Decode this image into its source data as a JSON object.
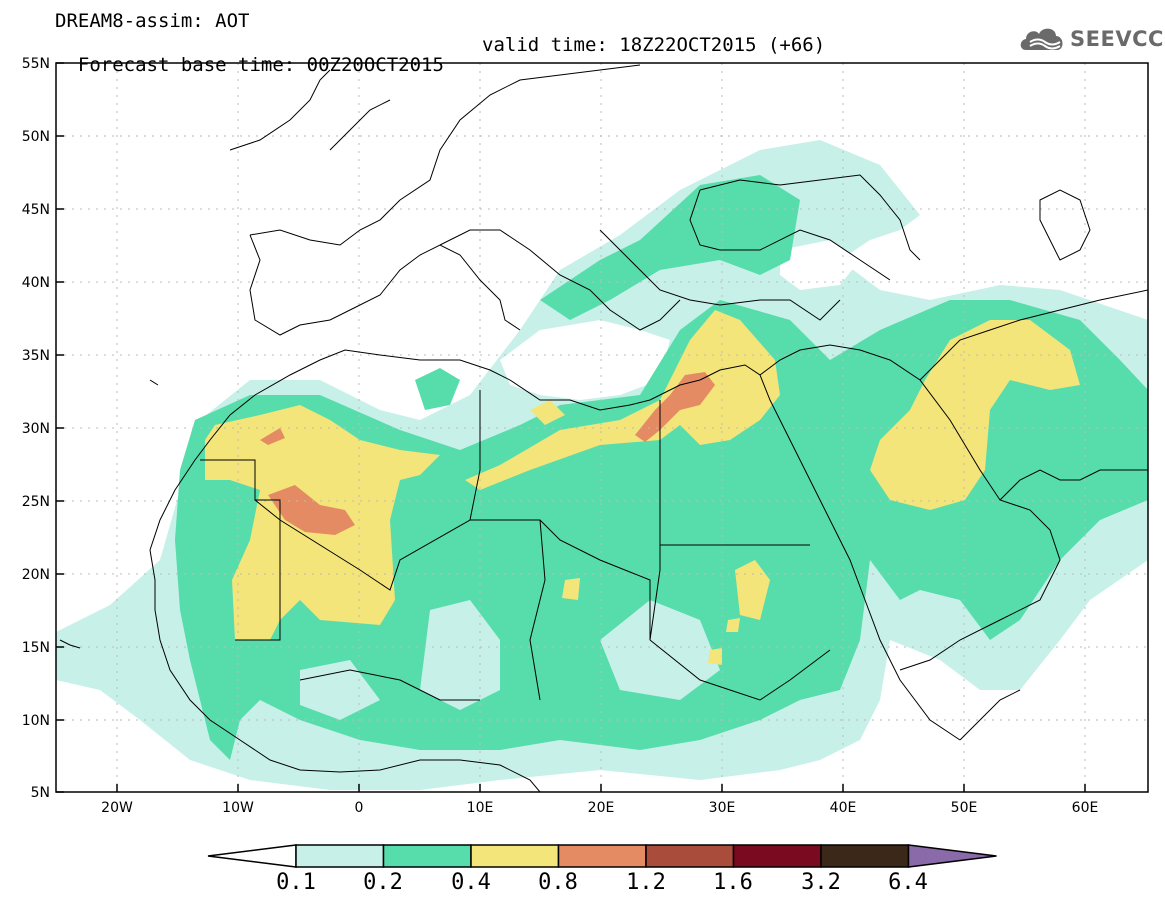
{
  "header": {
    "line1": "DREAM8-assim: AOT",
    "base": "Forecast base time: 00Z20OCT2015",
    "valid": "valid time: 18Z22OCT2015 (+66)"
  },
  "logo": {
    "text": "SEEVCCC",
    "icon": "cloud-icon"
  },
  "axes": {
    "lat_labels": [
      "55N",
      "50N",
      "45N",
      "40N",
      "35N",
      "30N",
      "25N",
      "20N",
      "15N",
      "10N",
      "5N"
    ],
    "lon_labels": [
      "20W",
      "10W",
      "0",
      "10E",
      "20E",
      "30E",
      "40E",
      "50E",
      "60E"
    ],
    "lat_range": [
      5,
      55
    ],
    "lon_range": [
      -25,
      65
    ],
    "grid": "dotted"
  },
  "colorbar": {
    "labels": [
      "0.1",
      "0.2",
      "0.4",
      "0.8",
      "1.2",
      "1.6",
      "3.2",
      "6.4"
    ],
    "colors": [
      "#ffffff",
      "#c7f0e8",
      "#57dcac",
      "#f4e57a",
      "#e58b64",
      "#aa4c3c",
      "#7a0a20",
      "#3c2818",
      "#8a6aa8"
    ]
  }
}
